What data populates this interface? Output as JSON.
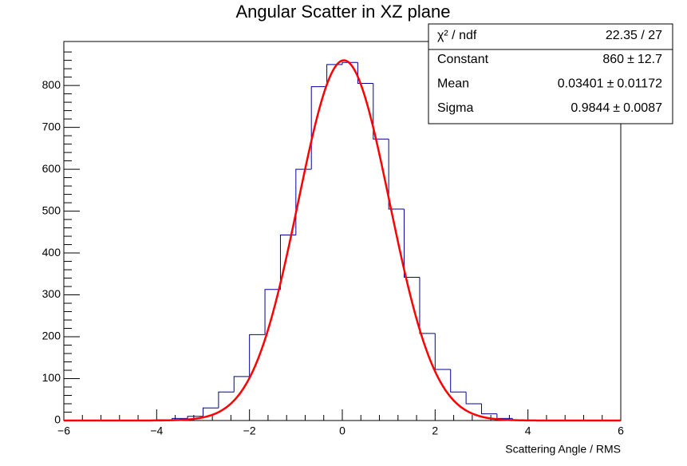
{
  "chart_data": {
    "type": "histogram",
    "title": "Angular Scatter in XZ plane",
    "x_label": "Scattering Angle / RMS",
    "bins": [
      -6,
      -5.6667,
      -5.3333,
      -5,
      -4.6667,
      -4.3333,
      -4,
      -3.6667,
      -3.3333,
      -3,
      -2.6667,
      -2.3333,
      -2,
      -1.6667,
      -1.3333,
      -1,
      -0.6667,
      -0.3333,
      0,
      0.3333,
      0.6667,
      1,
      1.3333,
      1.6667,
      2,
      2.3333,
      2.6667,
      3,
      3.3333,
      3.6667,
      4,
      4.3333,
      4.6667,
      5,
      5.3333,
      5.6667,
      6
    ],
    "counts": [
      0,
      0,
      0,
      0,
      0,
      0,
      2,
      5,
      10,
      30,
      68,
      105,
      205,
      313,
      443,
      600,
      797,
      850,
      855,
      805,
      672,
      505,
      342,
      208,
      122,
      68,
      40,
      16,
      5,
      1,
      0,
      0,
      0,
      0,
      0,
      0
    ],
    "color": "#000099",
    "xlim": [
      -6,
      6
    ],
    "ylim": [
      0,
      905
    ],
    "xticks": [
      {
        "value": -6,
        "label": "−6"
      },
      {
        "value": -4,
        "label": "−4"
      },
      {
        "value": -2,
        "label": "−2"
      },
      0,
      2,
      4,
      6
    ],
    "yticks": [
      0,
      100,
      200,
      300,
      400,
      500,
      600,
      700,
      800
    ],
    "minor_divisions": 5,
    "fit": {
      "function": "gaus",
      "color": "#ff0000",
      "chi2_label": "χ² / ndf",
      "chi2_text": "22.35 / 27",
      "pm": "±",
      "params": [
        {
          "name": "Constant",
          "value": 860,
          "error": 12.7
        },
        {
          "name": "Mean",
          "value": 0.03401,
          "error": 0.01172
        },
        {
          "name": "Sigma",
          "value": 0.9844,
          "error": 0.0087
        }
      ]
    }
  }
}
